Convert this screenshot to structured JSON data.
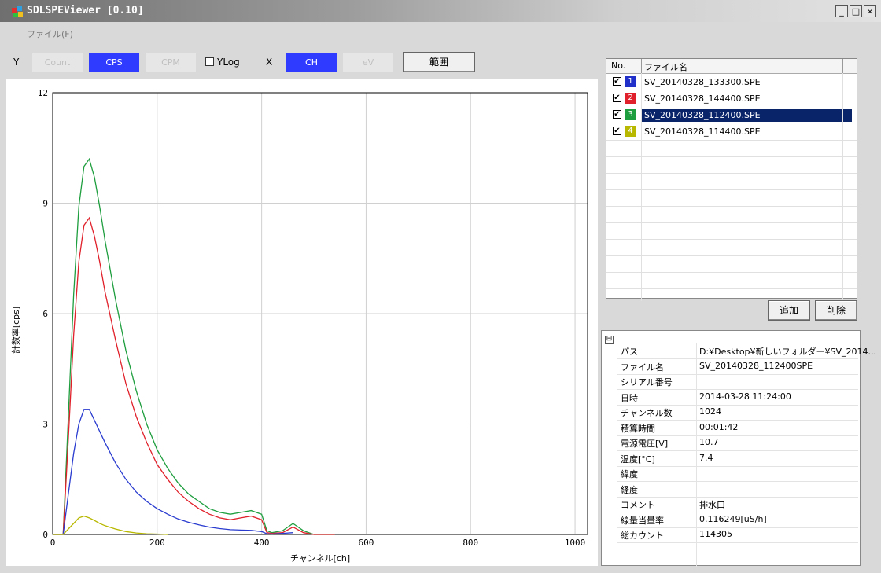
{
  "window": {
    "title": "SDLSPEViewer [0.10]",
    "minimize": "_",
    "maximize": "□",
    "close": "×"
  },
  "menu": {
    "file": "ファイル(F)"
  },
  "toolbar": {
    "y_label": "Y",
    "count": "Count",
    "cps": "CPS",
    "cpm": "CPM",
    "ylog": "YLog",
    "x_label": "X",
    "ch": "CH",
    "ev": "eV",
    "range": "範囲"
  },
  "chart_data": {
    "type": "line",
    "xlabel": "チャンネル[ch]",
    "ylabel": "計数率[cps]",
    "xlim": [
      0,
      1024
    ],
    "ylim": [
      0,
      12
    ],
    "xticks": [
      "0",
      "200",
      "400",
      "600",
      "800",
      "1000"
    ],
    "yticks": [
      "0",
      "3",
      "6",
      "9",
      "12"
    ],
    "grid": true,
    "series": [
      {
        "color": "#1e9e3e",
        "x": [
          0,
          20,
          30,
          40,
          50,
          60,
          70,
          80,
          90,
          100,
          120,
          140,
          160,
          180,
          200,
          220,
          240,
          260,
          280,
          300,
          320,
          340,
          360,
          380,
          400,
          410,
          420,
          440,
          460,
          480,
          500,
          520,
          540
        ],
        "y": [
          0,
          0,
          3.2,
          6.5,
          8.9,
          10.0,
          10.2,
          9.7,
          8.9,
          8.0,
          6.4,
          5.0,
          3.9,
          3.0,
          2.3,
          1.8,
          1.4,
          1.1,
          0.9,
          0.7,
          0.6,
          0.55,
          0.6,
          0.65,
          0.55,
          0.1,
          0.05,
          0.1,
          0.3,
          0.1,
          0,
          0,
          0
        ]
      },
      {
        "color": "#e0202a",
        "x": [
          0,
          20,
          30,
          40,
          50,
          60,
          70,
          80,
          90,
          100,
          120,
          140,
          160,
          180,
          200,
          220,
          240,
          260,
          280,
          300,
          320,
          340,
          360,
          380,
          400,
          410,
          420,
          440,
          460,
          480,
          500,
          520,
          540
        ],
        "y": [
          0,
          0,
          2.6,
          5.4,
          7.4,
          8.4,
          8.6,
          8.1,
          7.4,
          6.6,
          5.3,
          4.1,
          3.2,
          2.5,
          1.9,
          1.5,
          1.15,
          0.9,
          0.7,
          0.55,
          0.45,
          0.4,
          0.45,
          0.5,
          0.4,
          0.05,
          0.03,
          0.05,
          0.2,
          0.05,
          0,
          0,
          0
        ]
      },
      {
        "color": "#2a3ccf",
        "x": [
          0,
          20,
          30,
          40,
          50,
          60,
          70,
          80,
          90,
          100,
          120,
          140,
          160,
          180,
          200,
          220,
          240,
          260,
          280,
          300,
          320,
          340,
          360,
          380,
          400,
          410,
          420,
          440,
          460
        ],
        "y": [
          0,
          0,
          1.1,
          2.2,
          3.0,
          3.4,
          3.4,
          3.1,
          2.8,
          2.5,
          1.95,
          1.5,
          1.15,
          0.9,
          0.7,
          0.55,
          0.42,
          0.33,
          0.26,
          0.2,
          0.16,
          0.13,
          0.12,
          0.11,
          0.08,
          0.02,
          0.01,
          0.03,
          0.05
        ]
      },
      {
        "color": "#b8b800",
        "x": [
          0,
          20,
          30,
          40,
          50,
          60,
          70,
          80,
          90,
          100,
          120,
          140,
          160,
          180,
          200,
          220
        ],
        "y": [
          0,
          0,
          0.15,
          0.3,
          0.45,
          0.5,
          0.45,
          0.38,
          0.3,
          0.24,
          0.15,
          0.08,
          0.04,
          0.02,
          0.01,
          0
        ]
      }
    ]
  },
  "file_list": {
    "col_no": "No.",
    "col_name": "ファイル名",
    "items": [
      {
        "num": "1",
        "color": "#2030c8",
        "name": "SV_20140328_133300.SPE",
        "checked": "✔"
      },
      {
        "num": "2",
        "color": "#e0202a",
        "name": "SV_20140328_144400.SPE",
        "checked": "✔"
      },
      {
        "num": "3",
        "color": "#1e9e3e",
        "name": "SV_20140328_112400.SPE",
        "checked": "✔"
      },
      {
        "num": "4",
        "color": "#b8b800",
        "name": "SV_20140328_114400.SPE",
        "checked": "✔"
      }
    ]
  },
  "buttons": {
    "add": "追加",
    "delete": "削除"
  },
  "properties": {
    "collapse": "⊟",
    "rows": [
      {
        "k": "パス",
        "v": "D:¥Desktop¥新しいフォルダー¥SV_2014..."
      },
      {
        "k": "ファイル名",
        "v": "SV_20140328_112400SPE"
      },
      {
        "k": "シリアル番号",
        "v": ""
      },
      {
        "k": "日時",
        "v": "2014-03-28 11:24:00"
      },
      {
        "k": "チャンネル数",
        "v": "1024"
      },
      {
        "k": "積算時間",
        "v": "00:01:42"
      },
      {
        "k": "電源電圧[V]",
        "v": "10.7"
      },
      {
        "k": "温度[°C]",
        "v": "7.4"
      },
      {
        "k": "緯度",
        "v": ""
      },
      {
        "k": "経度",
        "v": ""
      },
      {
        "k": "コメント",
        "v": "排水口"
      },
      {
        "k": "線量当量率",
        "v": "0.116249[uS/h]"
      },
      {
        "k": "総カウント",
        "v": "114305"
      }
    ]
  }
}
